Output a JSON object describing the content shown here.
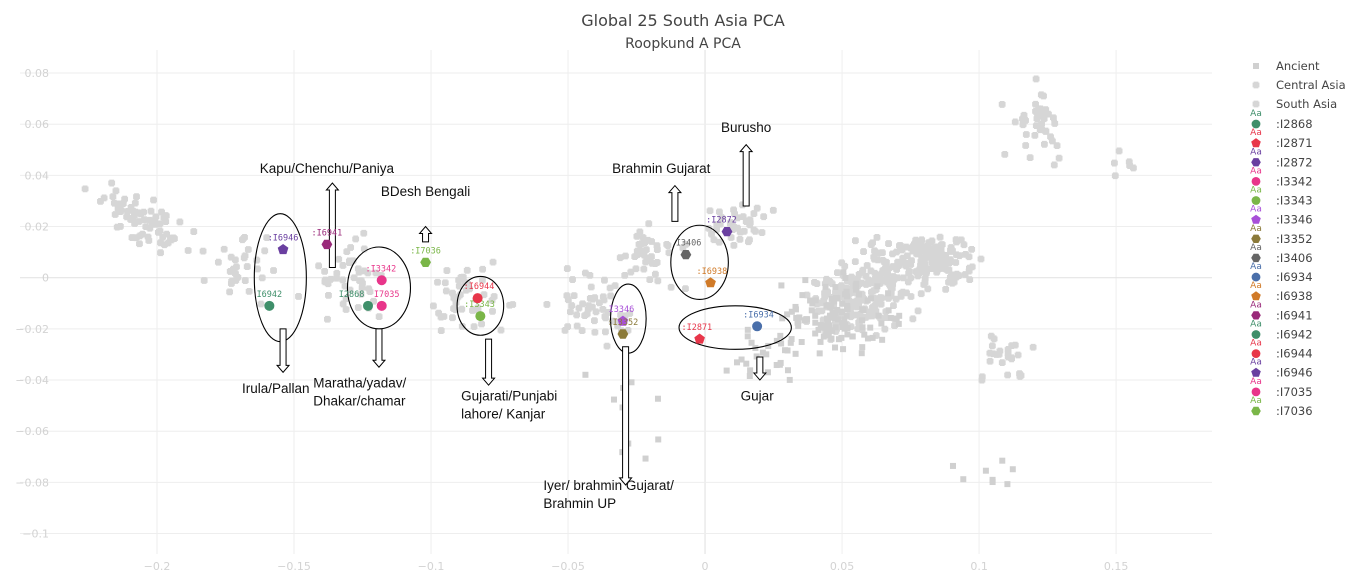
{
  "chart_data": {
    "type": "scatter",
    "title": "Global 25 South Asia PCA",
    "subtitle": "Roopkund A PCA",
    "xlim": [
      -0.25,
      0.185
    ],
    "ylim": [
      -0.108,
      0.089
    ],
    "xticks": [
      -0.2,
      -0.15,
      -0.1,
      -0.05,
      0,
      0.05,
      0.1,
      0.15
    ],
    "xtick_labels": [
      "−0.2",
      "−0.15",
      "−0.1",
      "−0.05",
      "0",
      "0.05",
      "0.1",
      "0.15"
    ],
    "yticks": [
      -0.1,
      -0.08,
      -0.06,
      -0.04,
      -0.02,
      0,
      0.02,
      0.04,
      0.06,
      0.08
    ],
    "ytick_labels": [
      "−0.1",
      "−0.08",
      "−0.06",
      "−0.04",
      "−0.02",
      "0",
      "0.02",
      "0.04",
      "0.06",
      "0.08"
    ],
    "grid": true,
    "legend_position": "right",
    "background_series": [
      {
        "name": "Ancient",
        "marker": "square",
        "color": "#d0d0d0"
      },
      {
        "name": "Central Asia",
        "marker": "cross",
        "color": "#d6d6d6"
      },
      {
        "name": "South Asia",
        "marker": "cross",
        "color": "#d6d6d6"
      }
    ],
    "samples": [
      {
        "name": ":I2868",
        "label": "I2868",
        "x": -0.123,
        "y": -0.011,
        "color": "#3f8f6a",
        "marker": "circle"
      },
      {
        "name": ":I2871",
        "label": ":I2871",
        "x": -0.002,
        "y": -0.024,
        "color": "#e8364a",
        "marker": "pentagon"
      },
      {
        "name": ":I2872",
        "label": ":I2872",
        "x": 0.008,
        "y": 0.018,
        "color": "#6a3fa0",
        "marker": "hexagon"
      },
      {
        "name": ":I3342",
        "label": ":I3342",
        "x": -0.118,
        "y": -0.001,
        "color": "#e8358a",
        "marker": "circle"
      },
      {
        "name": ":I3343",
        "label": ":I3343",
        "x": -0.082,
        "y": -0.015,
        "color": "#7ab648",
        "marker": "circle"
      },
      {
        "name": ":I3346",
        "label": "I3346",
        "x": -0.03,
        "y": -0.017,
        "color": "#a84fd8",
        "marker": "pentagon"
      },
      {
        "name": ":I3352",
        "label": ":I3352",
        "x": -0.03,
        "y": -0.022,
        "color": "#8b7a3a",
        "marker": "hexagon"
      },
      {
        "name": ":I3406",
        "label": "I3406",
        "x": -0.007,
        "y": 0.009,
        "color": "#666666",
        "marker": "hexagon"
      },
      {
        "name": ":I6934",
        "label": ":I6934",
        "x": 0.019,
        "y": -0.019,
        "color": "#4a6faa",
        "marker": "circle"
      },
      {
        "name": ":I6938",
        "label": ":I6938",
        "x": 0.002,
        "y": -0.002,
        "color": "#d07a28",
        "marker": "pentagon"
      },
      {
        "name": ":I6941",
        "label": ":I6941",
        "x": -0.138,
        "y": 0.013,
        "color": "#9a2a7a",
        "marker": "hexagon"
      },
      {
        "name": ":I6942",
        "label": "I6942",
        "x": -0.159,
        "y": -0.011,
        "color": "#3f8f6a",
        "marker": "circle"
      },
      {
        "name": ":I6944",
        "label": ":I6944",
        "x": -0.083,
        "y": -0.008,
        "color": "#e8364a",
        "marker": "circle"
      },
      {
        "name": ":I6946",
        "label": ":I6946",
        "x": -0.154,
        "y": 0.011,
        "color": "#6a3fa0",
        "marker": "pentagon"
      },
      {
        "name": ":I7035",
        "label": "I7035",
        "x": -0.118,
        "y": -0.011,
        "color": "#e8358a",
        "marker": "circle"
      },
      {
        "name": ":I7036",
        "label": ":I7036",
        "x": -0.102,
        "y": 0.006,
        "color": "#7ab648",
        "marker": "hexagon"
      }
    ],
    "annotations": [
      {
        "text": "Kapu/Chenchu/Paniya"
      },
      {
        "text": "BDesh Bengali"
      },
      {
        "text": "Brahmin Gujarat"
      },
      {
        "text": "Burusho"
      },
      {
        "text": "Irula/Pallan"
      },
      {
        "text": "Maratha/yadav/"
      },
      {
        "text": "Dhakar/chamar"
      },
      {
        "text": "Gujarati/Punjabi"
      },
      {
        "text": "lahore/ Kanjar"
      },
      {
        "text": "Iyer/ brahmin Gujarat/"
      },
      {
        "text": "Brahmin UP"
      },
      {
        "text": "Gujar"
      }
    ]
  },
  "legend": {
    "aa_glyph": "Aa"
  }
}
